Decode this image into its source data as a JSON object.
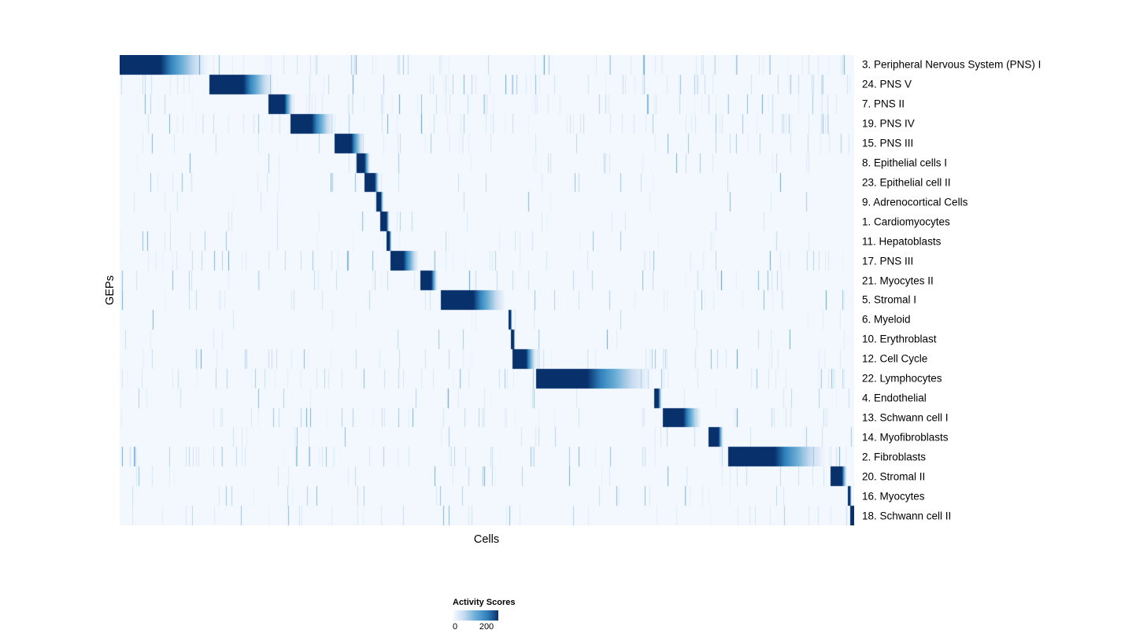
{
  "chart_data": {
    "type": "heatmap",
    "title": "",
    "xlabel": "Cells",
    "ylabel": "GEPs",
    "value_range": [
      0,
      200
    ],
    "legend": {
      "title": "Activity Scores",
      "ticks": [
        0,
        200
      ],
      "colormap": "Blues",
      "color_low": "#f7fbff",
      "color_high": "#08306b"
    },
    "layout": {
      "grid": false,
      "legend_position": "bottom-center",
      "row_labels_position": "right"
    },
    "rows": [
      {
        "label": "3. Peripheral Nervous System (PNS) I",
        "block": [
          0.0,
          0.055,
          0.125
        ],
        "noise": 0.35
      },
      {
        "label": "24. PNS V",
        "block": [
          0.122,
          0.168,
          0.212
        ],
        "noise": 0.3
      },
      {
        "label": "7. PNS II",
        "block": [
          0.202,
          0.224,
          0.237
        ],
        "noise": 0.3
      },
      {
        "label": "19. PNS IV",
        "block": [
          0.232,
          0.261,
          0.293
        ],
        "noise": 0.35
      },
      {
        "label": "15. PNS III",
        "block": [
          0.292,
          0.315,
          0.333
        ],
        "noise": 0.3
      },
      {
        "label": "8. Epithelial cells I",
        "block": [
          0.322,
          0.333,
          0.341
        ],
        "noise": 0.12
      },
      {
        "label": "23. Epithelial cell II",
        "block": [
          0.333,
          0.347,
          0.353
        ],
        "noise": 0.12
      },
      {
        "label": "9. Adrenocortical Cells",
        "block": [
          0.349,
          0.355,
          0.359
        ],
        "noise": 0.1
      },
      {
        "label": "1. Cardiomyocytes",
        "block": [
          0.354,
          0.363,
          0.367
        ],
        "noise": 0.1
      },
      {
        "label": "11. Hepatoblasts",
        "block": [
          0.363,
          0.367,
          0.37
        ],
        "noise": 0.1
      },
      {
        "label": "17. PNS III",
        "block": [
          0.368,
          0.386,
          0.408
        ],
        "noise": 0.25
      },
      {
        "label": "21. Myocytes II",
        "block": [
          0.409,
          0.424,
          0.433
        ],
        "noise": 0.2
      },
      {
        "label": "5. Stromal I",
        "block": [
          0.437,
          0.481,
          0.528
        ],
        "noise": 0.25
      },
      {
        "label": "6. Myeloid",
        "block": [
          0.529,
          0.532,
          0.534
        ],
        "noise": 0.1
      },
      {
        "label": "10. Erythroblast",
        "block": [
          0.532,
          0.536,
          0.538
        ],
        "noise": 0.1
      },
      {
        "label": "12. Cell Cycle",
        "block": [
          0.534,
          0.553,
          0.568
        ],
        "noise": 0.3
      },
      {
        "label": "22. Lymphocytes",
        "block": [
          0.566,
          0.636,
          0.729
        ],
        "noise": 0.35
      },
      {
        "label": "4. Endothelial",
        "block": [
          0.727,
          0.733,
          0.738
        ],
        "noise": 0.12
      },
      {
        "label": "13. Schwann cell I",
        "block": [
          0.739,
          0.767,
          0.793
        ],
        "noise": 0.25
      },
      {
        "label": "14. Myofibroblasts",
        "block": [
          0.801,
          0.815,
          0.822
        ],
        "noise": 0.15
      },
      {
        "label": "2. Fibroblasts",
        "block": [
          0.828,
          0.891,
          0.965
        ],
        "noise": 0.3
      },
      {
        "label": "20. Stromal II",
        "block": [
          0.967,
          0.983,
          0.99
        ],
        "noise": 0.25
      },
      {
        "label": "16. Myocytes",
        "block": [
          0.991,
          0.994,
          0.996
        ],
        "noise": 0.15
      },
      {
        "label": "18. Schwann cell II",
        "block": [
          0.994,
          0.999,
          1.0
        ],
        "noise": 0.2
      }
    ]
  }
}
